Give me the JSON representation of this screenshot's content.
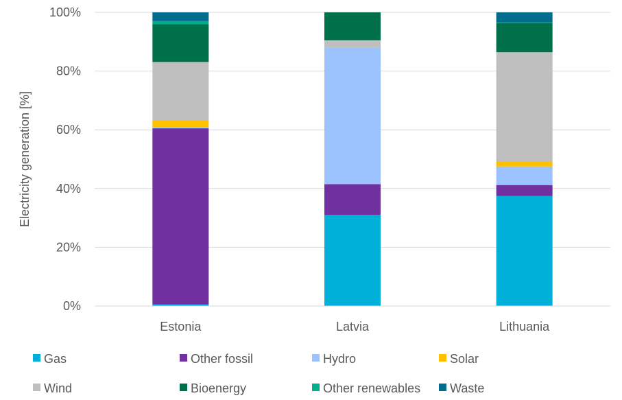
{
  "chart_data": {
    "type": "bar",
    "stacked": true,
    "ylabel": "Electricity generation [%]",
    "xlabel": "",
    "ylim": [
      0,
      100
    ],
    "yticks": [
      "0%",
      "20%",
      "40%",
      "60%",
      "80%",
      "100%"
    ],
    "categories": [
      "Estonia",
      "Latvia",
      "Lithuania"
    ],
    "grid": "horizontal",
    "legend_position": "bottom",
    "series": [
      {
        "name": "Gas",
        "color": "#00B0D8",
        "values": [
          0.5,
          31.0,
          37.5
        ]
      },
      {
        "name": "Other fossil",
        "color": "#7030A0",
        "values": [
          60.0,
          10.5,
          3.7
        ]
      },
      {
        "name": "Hydro",
        "color": "#9DC3FF",
        "values": [
          0.3,
          46.5,
          6.3
        ]
      },
      {
        "name": "Solar",
        "color": "#FFC000",
        "values": [
          2.5,
          0.0,
          1.8
        ]
      },
      {
        "name": "Wind",
        "color": "#BFBFBF",
        "values": [
          19.8,
          2.5,
          37.1
        ]
      },
      {
        "name": "Bioenergy",
        "color": "#00704A",
        "values": [
          12.9,
          9.5,
          10.0
        ]
      },
      {
        "name": "Other renewables",
        "color": "#00B08C",
        "values": [
          1.0,
          0.0,
          0.2
        ]
      },
      {
        "name": "Waste",
        "color": "#006D8F",
        "values": [
          3.0,
          0.0,
          3.4
        ]
      }
    ]
  }
}
